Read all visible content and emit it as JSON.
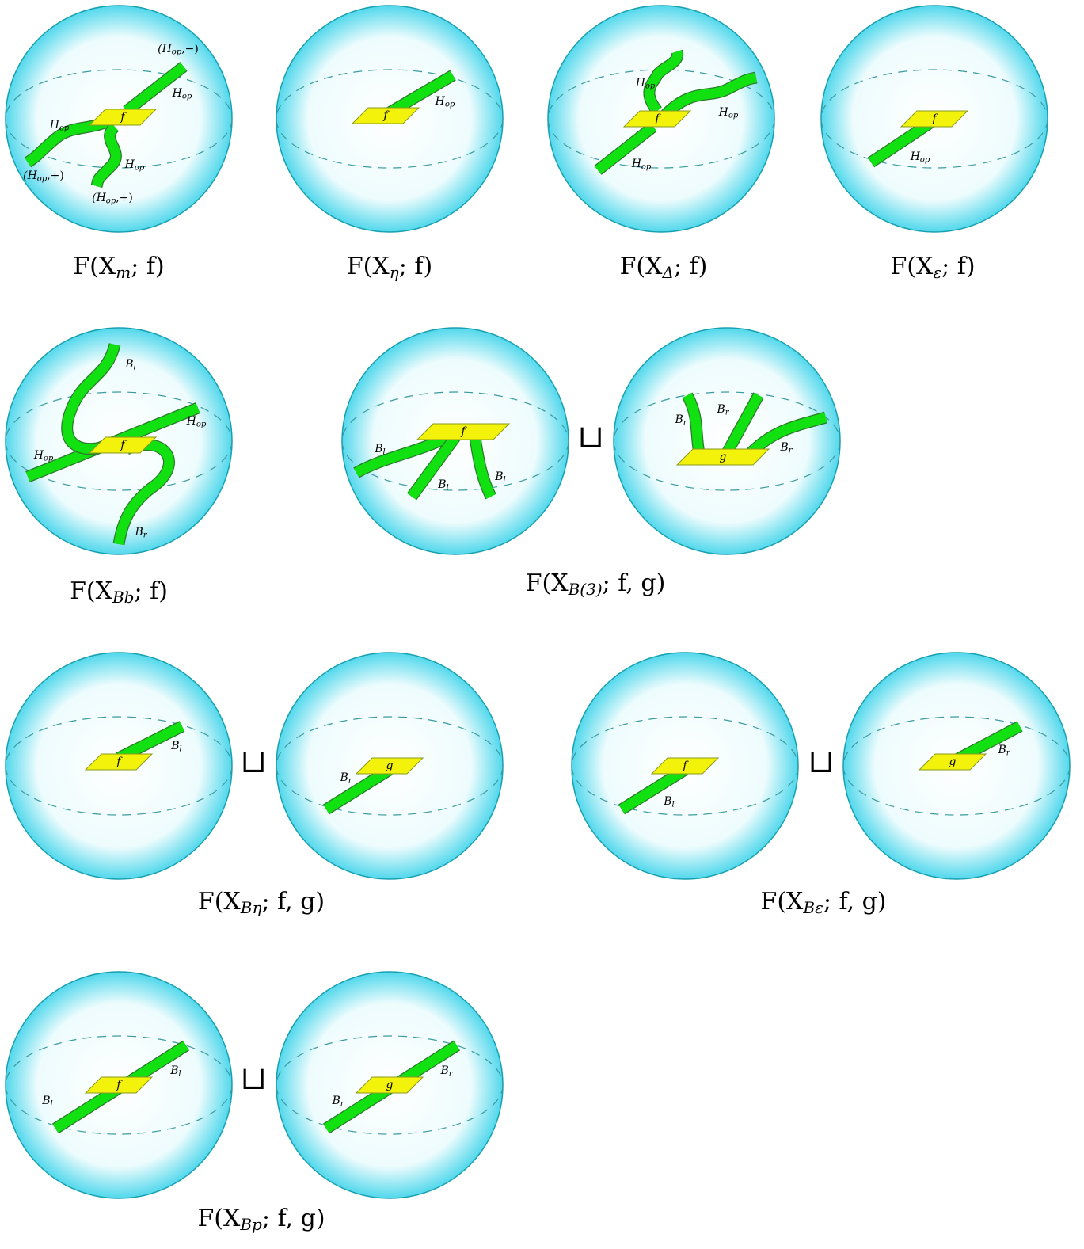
{
  "figures": [
    {
      "caption": {
        "base": "F(X",
        "sub": "m",
        "tail": "; f)"
      },
      "spheres": [
        {
          "box": "f",
          "labels": [
            {
              "pre": "(H",
              "sub": "op",
              "post": ",−)"
            },
            {
              "pre": "H",
              "sub": "op"
            },
            {
              "pre": "H",
              "sub": "op"
            },
            {
              "pre": "H",
              "sub": "op"
            },
            {
              "pre": "(H",
              "sub": "op",
              "post": ",+)"
            },
            {
              "pre": "(H",
              "sub": "op",
              "post": ",+)"
            }
          ]
        }
      ]
    },
    {
      "caption": {
        "base": "F(X",
        "sub": "η",
        "tail": "; f)"
      },
      "spheres": [
        {
          "box": "f",
          "labels": [
            {
              "pre": "H",
              "sub": "op"
            }
          ]
        }
      ]
    },
    {
      "caption": {
        "base": "F(X",
        "sub": "Δ",
        "tail": "; f)"
      },
      "spheres": [
        {
          "box": "f",
          "labels": [
            {
              "pre": "H",
              "sub": "op"
            },
            {
              "pre": "H",
              "sub": "op"
            },
            {
              "pre": "H",
              "sub": "op"
            }
          ]
        }
      ]
    },
    {
      "caption": {
        "base": "F(X",
        "sub": "ε",
        "tail": "; f)"
      },
      "spheres": [
        {
          "box": "f",
          "labels": [
            {
              "pre": "H",
              "sub": "op"
            }
          ]
        }
      ]
    },
    {
      "caption": {
        "base": "F(X",
        "sub": "Bb",
        "tail": "; f)"
      },
      "spheres": [
        {
          "box": "f",
          "labels": [
            {
              "pre": "B",
              "sub": "l"
            },
            {
              "pre": "H",
              "sub": "op"
            },
            {
              "pre": "H",
              "sub": "op"
            },
            {
              "pre": "B",
              "sub": "r"
            }
          ]
        }
      ]
    },
    {
      "caption": {
        "base": "F(X",
        "sub": "B(3)",
        "tail": "; f, g)"
      },
      "spheres": [
        {
          "box": "f",
          "labels": [
            {
              "pre": "B",
              "sub": "l"
            },
            {
              "pre": "B",
              "sub": "l"
            },
            {
              "pre": "B",
              "sub": "l"
            }
          ]
        },
        {
          "box": "g",
          "labels": [
            {
              "pre": "B",
              "sub": "r"
            },
            {
              "pre": "B",
              "sub": "r"
            },
            {
              "pre": "B",
              "sub": "r"
            }
          ]
        }
      ]
    },
    {
      "caption": {
        "base": "F(X",
        "sub": "Bη",
        "tail": "; f, g)"
      },
      "spheres": [
        {
          "box": "f",
          "labels": [
            {
              "pre": "B",
              "sub": "l"
            }
          ]
        },
        {
          "box": "g",
          "labels": [
            {
              "pre": "B",
              "sub": "r"
            }
          ]
        }
      ]
    },
    {
      "caption": {
        "base": "F(X",
        "sub": "Bε",
        "tail": "; f, g)"
      },
      "spheres": [
        {
          "box": "f",
          "labels": [
            {
              "pre": "B",
              "sub": "l"
            }
          ]
        },
        {
          "box": "g",
          "labels": [
            {
              "pre": "B",
              "sub": "r"
            }
          ]
        }
      ]
    },
    {
      "caption": {
        "base": "F(X",
        "sub": "Bp",
        "tail": "; f, g)"
      },
      "spheres": [
        {
          "box": "f",
          "labels": [
            {
              "pre": "B",
              "sub": "l"
            },
            {
              "pre": "B",
              "sub": "l"
            }
          ]
        },
        {
          "box": "g",
          "labels": [
            {
              "pre": "B",
              "sub": "r"
            },
            {
              "pre": "B",
              "sub": "r"
            }
          ]
        }
      ]
    }
  ],
  "union": "⊔"
}
